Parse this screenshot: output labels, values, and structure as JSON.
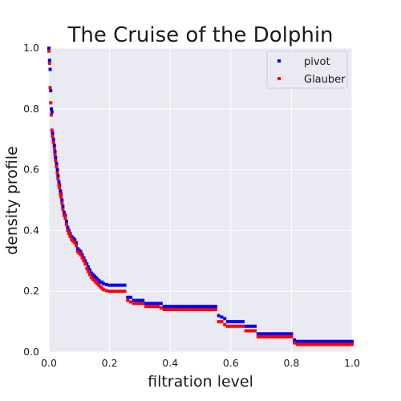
{
  "chart_data": {
    "type": "scatter",
    "title": "The Cruise of the Dolphin",
    "xlabel": "filtration level",
    "ylabel": "density profile",
    "xlim": [
      0.0,
      1.0
    ],
    "ylim": [
      0.0,
      1.0
    ],
    "xticks": [
      "0.0",
      "0.2",
      "0.4",
      "0.6",
      "0.8",
      "1.0"
    ],
    "yticks": [
      "0.0",
      "0.2",
      "0.4",
      "0.6",
      "0.8",
      "1.0"
    ],
    "grid": true,
    "legend_position": "top-right",
    "background": "#eaeaf2",
    "series": [
      {
        "name": "pivot",
        "color": "#0000ff",
        "points": [
          [
            0.0,
            1.0
          ],
          [
            0.002,
            0.96
          ],
          [
            0.004,
            0.93
          ],
          [
            0.006,
            0.86
          ],
          [
            0.008,
            0.8
          ],
          [
            0.01,
            0.79
          ],
          [
            0.012,
            0.72
          ],
          [
            0.015,
            0.7
          ],
          [
            0.018,
            0.68
          ],
          [
            0.02,
            0.66
          ],
          [
            0.022,
            0.64
          ],
          [
            0.025,
            0.62
          ],
          [
            0.028,
            0.6
          ],
          [
            0.03,
            0.58
          ],
          [
            0.033,
            0.56
          ],
          [
            0.035,
            0.55
          ],
          [
            0.038,
            0.53
          ],
          [
            0.04,
            0.52
          ],
          [
            0.043,
            0.5
          ],
          [
            0.046,
            0.48
          ],
          [
            0.05,
            0.46
          ],
          [
            0.054,
            0.45
          ],
          [
            0.058,
            0.43
          ],
          [
            0.062,
            0.41
          ],
          [
            0.066,
            0.4
          ],
          [
            0.07,
            0.39
          ],
          [
            0.075,
            0.38
          ],
          [
            0.08,
            0.375
          ],
          [
            0.085,
            0.37
          ],
          [
            0.09,
            0.36
          ],
          [
            0.095,
            0.34
          ],
          [
            0.1,
            0.335
          ],
          [
            0.105,
            0.33
          ],
          [
            0.11,
            0.32
          ],
          [
            0.115,
            0.31
          ],
          [
            0.12,
            0.3
          ],
          [
            0.125,
            0.29
          ],
          [
            0.13,
            0.28
          ],
          [
            0.135,
            0.27
          ],
          [
            0.14,
            0.26
          ],
          [
            0.145,
            0.255
          ],
          [
            0.15,
            0.25
          ],
          [
            0.155,
            0.245
          ],
          [
            0.16,
            0.24
          ],
          [
            0.165,
            0.235
          ],
          [
            0.17,
            0.23
          ],
          [
            0.175,
            0.23
          ],
          [
            0.18,
            0.225
          ],
          [
            0.19,
            0.222
          ],
          [
            0.2,
            0.22
          ],
          [
            0.21,
            0.22
          ],
          [
            0.22,
            0.22
          ],
          [
            0.23,
            0.22
          ],
          [
            0.24,
            0.22
          ],
          [
            0.25,
            0.22
          ],
          [
            0.26,
            0.18
          ],
          [
            0.27,
            0.18
          ],
          [
            0.28,
            0.17
          ],
          [
            0.29,
            0.17
          ],
          [
            0.3,
            0.17
          ],
          [
            0.31,
            0.17
          ],
          [
            0.32,
            0.16
          ],
          [
            0.33,
            0.16
          ],
          [
            0.34,
            0.16
          ],
          [
            0.35,
            0.16
          ],
          [
            0.36,
            0.16
          ],
          [
            0.37,
            0.16
          ],
          [
            0.38,
            0.15
          ],
          [
            0.39,
            0.15
          ],
          [
            0.4,
            0.15
          ],
          [
            0.41,
            0.15
          ],
          [
            0.42,
            0.15
          ],
          [
            0.43,
            0.15
          ],
          [
            0.44,
            0.15
          ],
          [
            0.45,
            0.15
          ],
          [
            0.46,
            0.15
          ],
          [
            0.47,
            0.15
          ],
          [
            0.48,
            0.15
          ],
          [
            0.49,
            0.15
          ],
          [
            0.5,
            0.15
          ],
          [
            0.51,
            0.15
          ],
          [
            0.52,
            0.15
          ],
          [
            0.53,
            0.15
          ],
          [
            0.54,
            0.15
          ],
          [
            0.55,
            0.15
          ],
          [
            0.56,
            0.12
          ],
          [
            0.57,
            0.115
          ],
          [
            0.58,
            0.11
          ],
          [
            0.59,
            0.1
          ],
          [
            0.6,
            0.1
          ],
          [
            0.61,
            0.1
          ],
          [
            0.62,
            0.1
          ],
          [
            0.63,
            0.1
          ],
          [
            0.64,
            0.1
          ],
          [
            0.65,
            0.085
          ],
          [
            0.66,
            0.085
          ],
          [
            0.67,
            0.085
          ],
          [
            0.68,
            0.085
          ],
          [
            0.69,
            0.06
          ],
          [
            0.7,
            0.06
          ],
          [
            0.71,
            0.06
          ],
          [
            0.72,
            0.06
          ],
          [
            0.73,
            0.06
          ],
          [
            0.74,
            0.06
          ],
          [
            0.75,
            0.06
          ],
          [
            0.76,
            0.06
          ],
          [
            0.77,
            0.06
          ],
          [
            0.78,
            0.06
          ],
          [
            0.79,
            0.06
          ],
          [
            0.8,
            0.06
          ],
          [
            0.81,
            0.04
          ],
          [
            0.82,
            0.035
          ],
          [
            0.83,
            0.035
          ],
          [
            0.84,
            0.035
          ],
          [
            0.85,
            0.035
          ],
          [
            0.86,
            0.035
          ],
          [
            0.87,
            0.035
          ],
          [
            0.88,
            0.035
          ],
          [
            0.89,
            0.035
          ],
          [
            0.9,
            0.035
          ],
          [
            0.91,
            0.035
          ],
          [
            0.92,
            0.035
          ],
          [
            0.93,
            0.035
          ],
          [
            0.94,
            0.035
          ],
          [
            0.95,
            0.035
          ],
          [
            0.96,
            0.035
          ],
          [
            0.97,
            0.035
          ],
          [
            0.98,
            0.035
          ],
          [
            0.99,
            0.035
          ],
          [
            1.0,
            0.035
          ]
        ]
      },
      {
        "name": "Glauber",
        "color": "#ff0000",
        "points": [
          [
            0.0,
            0.99
          ],
          [
            0.002,
            0.95
          ],
          [
            0.004,
            0.87
          ],
          [
            0.006,
            0.82
          ],
          [
            0.008,
            0.78
          ],
          [
            0.01,
            0.73
          ],
          [
            0.012,
            0.71
          ],
          [
            0.015,
            0.69
          ],
          [
            0.018,
            0.67
          ],
          [
            0.02,
            0.65
          ],
          [
            0.022,
            0.63
          ],
          [
            0.025,
            0.61
          ],
          [
            0.028,
            0.59
          ],
          [
            0.03,
            0.57
          ],
          [
            0.033,
            0.55
          ],
          [
            0.035,
            0.54
          ],
          [
            0.038,
            0.52
          ],
          [
            0.04,
            0.51
          ],
          [
            0.043,
            0.49
          ],
          [
            0.046,
            0.47
          ],
          [
            0.05,
            0.45
          ],
          [
            0.054,
            0.44
          ],
          [
            0.058,
            0.42
          ],
          [
            0.062,
            0.4
          ],
          [
            0.066,
            0.39
          ],
          [
            0.07,
            0.38
          ],
          [
            0.075,
            0.37
          ],
          [
            0.08,
            0.365
          ],
          [
            0.085,
            0.36
          ],
          [
            0.09,
            0.35
          ],
          [
            0.095,
            0.33
          ],
          [
            0.1,
            0.325
          ],
          [
            0.105,
            0.32
          ],
          [
            0.11,
            0.31
          ],
          [
            0.115,
            0.3
          ],
          [
            0.12,
            0.29
          ],
          [
            0.125,
            0.275
          ],
          [
            0.13,
            0.265
          ],
          [
            0.135,
            0.255
          ],
          [
            0.14,
            0.245
          ],
          [
            0.145,
            0.24
          ],
          [
            0.15,
            0.235
          ],
          [
            0.155,
            0.23
          ],
          [
            0.16,
            0.225
          ],
          [
            0.165,
            0.22
          ],
          [
            0.17,
            0.215
          ],
          [
            0.175,
            0.21
          ],
          [
            0.18,
            0.205
          ],
          [
            0.19,
            0.202
          ],
          [
            0.2,
            0.2
          ],
          [
            0.21,
            0.2
          ],
          [
            0.22,
            0.2
          ],
          [
            0.23,
            0.2
          ],
          [
            0.24,
            0.2
          ],
          [
            0.25,
            0.2
          ],
          [
            0.26,
            0.17
          ],
          [
            0.27,
            0.165
          ],
          [
            0.28,
            0.16
          ],
          [
            0.29,
            0.16
          ],
          [
            0.3,
            0.16
          ],
          [
            0.31,
            0.16
          ],
          [
            0.32,
            0.15
          ],
          [
            0.33,
            0.15
          ],
          [
            0.34,
            0.15
          ],
          [
            0.35,
            0.15
          ],
          [
            0.36,
            0.15
          ],
          [
            0.37,
            0.145
          ],
          [
            0.38,
            0.14
          ],
          [
            0.39,
            0.14
          ],
          [
            0.4,
            0.14
          ],
          [
            0.41,
            0.14
          ],
          [
            0.42,
            0.14
          ],
          [
            0.43,
            0.14
          ],
          [
            0.44,
            0.14
          ],
          [
            0.45,
            0.14
          ],
          [
            0.46,
            0.14
          ],
          [
            0.47,
            0.14
          ],
          [
            0.48,
            0.14
          ],
          [
            0.49,
            0.14
          ],
          [
            0.5,
            0.14
          ],
          [
            0.51,
            0.14
          ],
          [
            0.52,
            0.14
          ],
          [
            0.53,
            0.14
          ],
          [
            0.54,
            0.14
          ],
          [
            0.55,
            0.14
          ],
          [
            0.56,
            0.1
          ],
          [
            0.57,
            0.1
          ],
          [
            0.58,
            0.09
          ],
          [
            0.59,
            0.085
          ],
          [
            0.6,
            0.085
          ],
          [
            0.61,
            0.085
          ],
          [
            0.62,
            0.085
          ],
          [
            0.63,
            0.085
          ],
          [
            0.64,
            0.085
          ],
          [
            0.65,
            0.07
          ],
          [
            0.66,
            0.07
          ],
          [
            0.67,
            0.07
          ],
          [
            0.68,
            0.07
          ],
          [
            0.69,
            0.05
          ],
          [
            0.7,
            0.05
          ],
          [
            0.71,
            0.05
          ],
          [
            0.72,
            0.05
          ],
          [
            0.73,
            0.05
          ],
          [
            0.74,
            0.05
          ],
          [
            0.75,
            0.05
          ],
          [
            0.76,
            0.05
          ],
          [
            0.77,
            0.05
          ],
          [
            0.78,
            0.05
          ],
          [
            0.79,
            0.05
          ],
          [
            0.8,
            0.05
          ],
          [
            0.81,
            0.03
          ],
          [
            0.82,
            0.025
          ],
          [
            0.83,
            0.025
          ],
          [
            0.84,
            0.025
          ],
          [
            0.85,
            0.025
          ],
          [
            0.86,
            0.025
          ],
          [
            0.87,
            0.025
          ],
          [
            0.88,
            0.025
          ],
          [
            0.89,
            0.025
          ],
          [
            0.9,
            0.025
          ],
          [
            0.91,
            0.025
          ],
          [
            0.92,
            0.025
          ],
          [
            0.93,
            0.025
          ],
          [
            0.94,
            0.025
          ],
          [
            0.95,
            0.025
          ],
          [
            0.96,
            0.025
          ],
          [
            0.97,
            0.025
          ],
          [
            0.98,
            0.025
          ],
          [
            0.99,
            0.025
          ],
          [
            1.0,
            0.025
          ]
        ]
      }
    ]
  }
}
